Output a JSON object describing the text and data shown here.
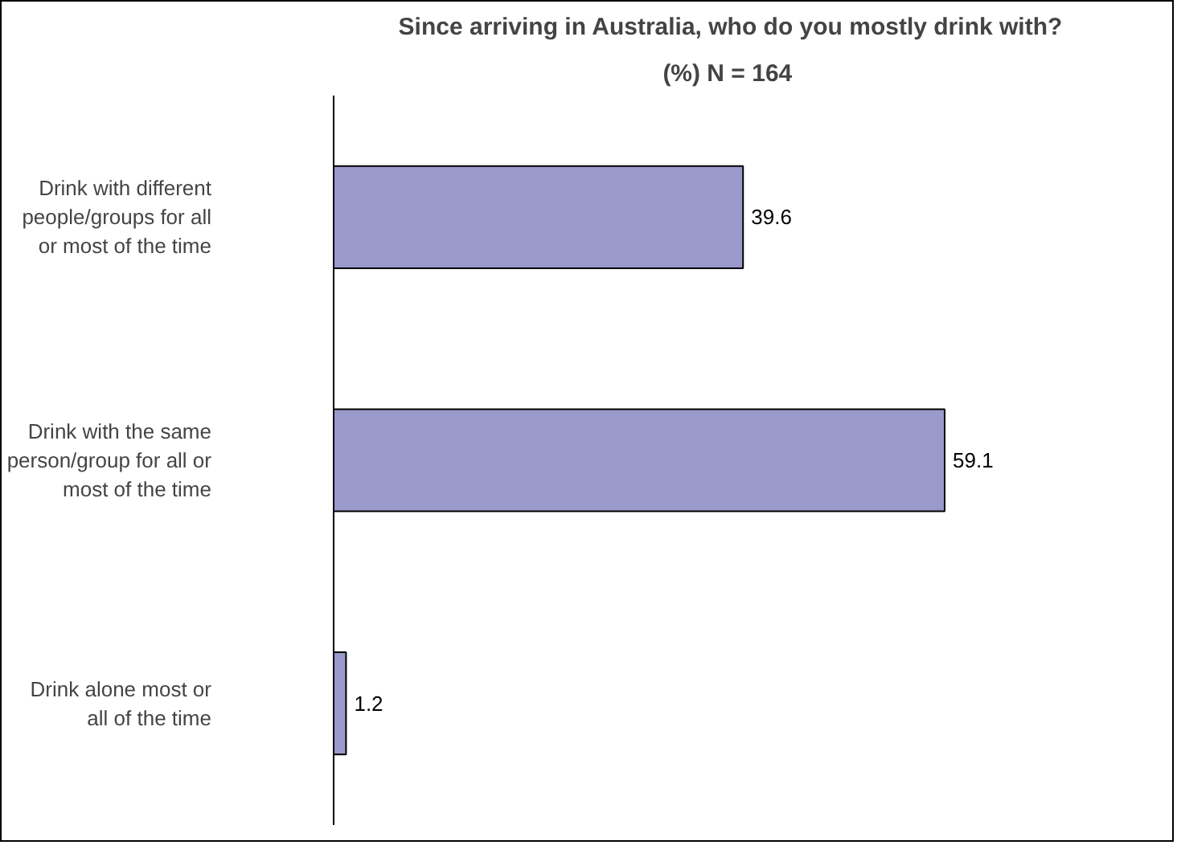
{
  "chart_data": {
    "type": "bar",
    "orientation": "horizontal",
    "title": "Since arriving in Australia, who do you mostly drink with?",
    "subtitle": "(%)  N = 164",
    "categories": [
      "Drink with different\npeople/groups for all\nor most of the time",
      "Drink with the same\nperson/group for all or\nmost of the time",
      "Drink alone most or\nall of the time"
    ],
    "values": [
      39.6,
      59.1,
      1.2
    ],
    "color": "#9999cc",
    "data_labels": true,
    "grid": false
  }
}
